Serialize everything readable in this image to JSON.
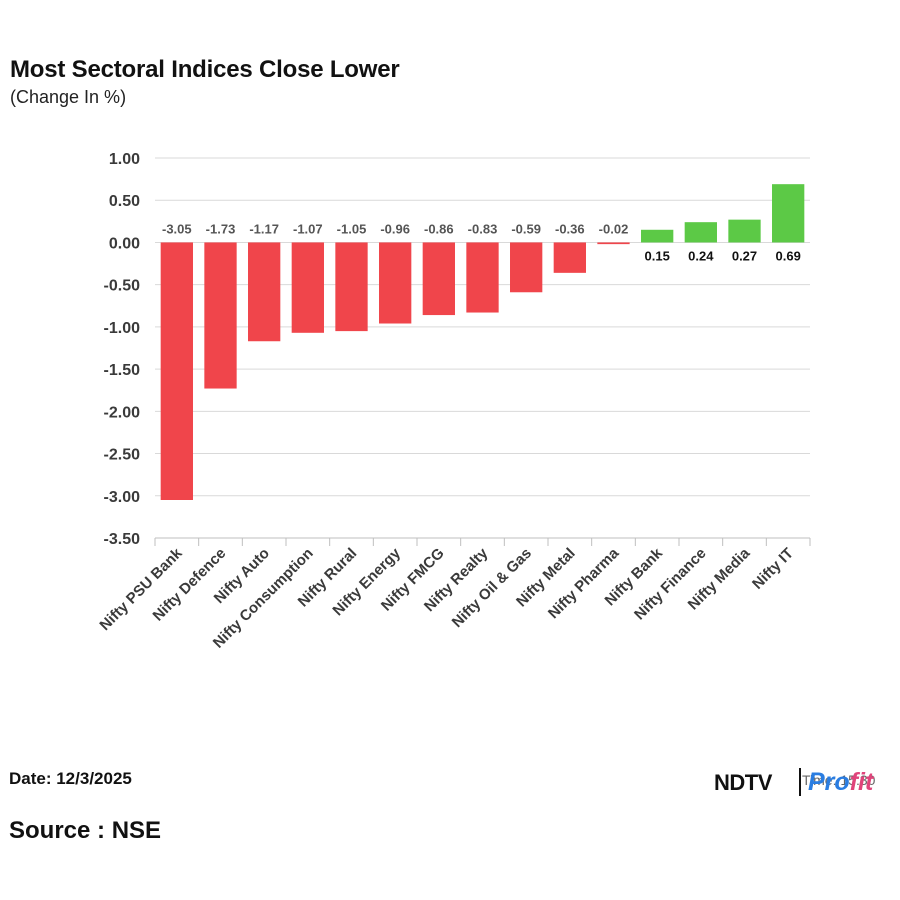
{
  "header": {
    "title": "Most Sectoral Indices Close Lower",
    "subtitle": "(Change In %)"
  },
  "footer": {
    "date": "Date: 12/3/2025",
    "source": "Source : NSE"
  },
  "logo": {
    "brand_left": "NDTV",
    "brand_right_part1": "Pro",
    "brand_right_part2": "fit",
    "overlay_text": "Time: 15:30"
  },
  "colors": {
    "negative": "#f0454b",
    "positive": "#5cc946",
    "grid": "#d9d9d9",
    "label_negative": "#555555",
    "label_positive": "#111111"
  },
  "chart_data": {
    "type": "bar",
    "title": "Most Sectoral Indices Close Lower",
    "subtitle": "(Change In %)",
    "categories": [
      "Nifty PSU Bank",
      "Nifty Defence",
      "Nifty Auto",
      "Nifty Consumption",
      "Nifty Rural",
      "Nifty Energy",
      "Nifty FMCG",
      "Nifty Realty",
      "Nifty Oil & Gas",
      "Nifty Metal",
      "Nifty Pharma",
      "Nifty Bank",
      "Nifty Finance",
      "Nifty Media",
      "Nifty IT"
    ],
    "values": [
      -3.05,
      -1.73,
      -1.17,
      -1.07,
      -1.05,
      -0.96,
      -0.86,
      -0.83,
      -0.59,
      -0.36,
      -0.02,
      0.15,
      0.24,
      0.27,
      0.69
    ],
    "data_labels": [
      "-3.05",
      "-1.73",
      "-1.17",
      "-1.07",
      "-1.05",
      "-0.96",
      "-0.86",
      "-0.83",
      "-0.59",
      "-0.36",
      "-0.02",
      "0.15",
      "0.24",
      "0.27",
      "0.69"
    ],
    "ylim": [
      -3.5,
      1.0
    ],
    "yticks": [
      1.0,
      0.5,
      0.0,
      -0.5,
      -1.0,
      -1.5,
      -2.0,
      -2.5,
      -3.0,
      -3.5
    ],
    "ytick_labels": [
      "1.00",
      "0.50",
      "0.00",
      "-0.50",
      "-1.00",
      "-1.50",
      "-2.00",
      "-2.50",
      "-3.00",
      "-3.50"
    ],
    "xlabel": "",
    "ylabel": "",
    "grid": true,
    "legend": "none"
  }
}
